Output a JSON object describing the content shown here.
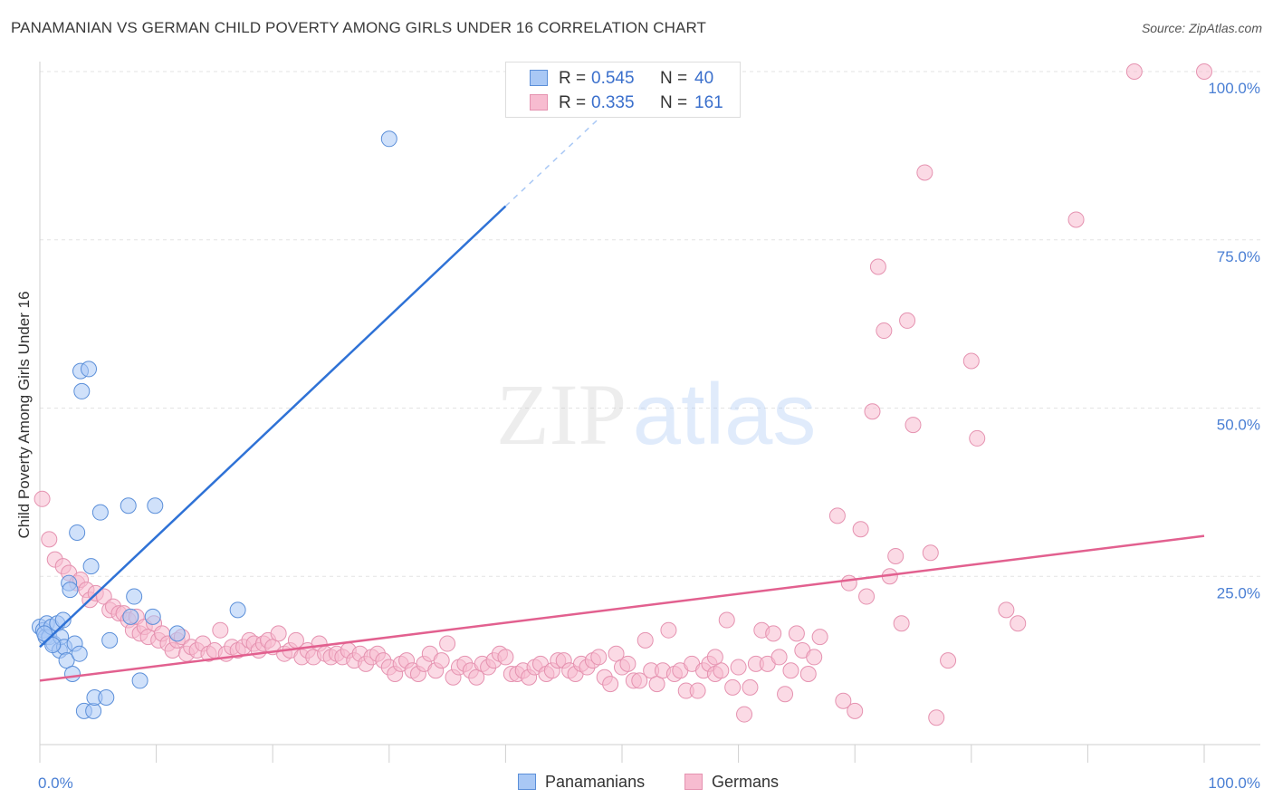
{
  "header": {
    "title": "PANAMANIAN VS GERMAN CHILD POVERTY AMONG GIRLS UNDER 16 CORRELATION CHART",
    "source": "Source: ZipAtlas.com"
  },
  "watermark": {
    "zip": "ZIP",
    "atlas": "atlas"
  },
  "legend": {
    "rows": [
      {
        "r_label": "R =",
        "r_value": "0.545",
        "n_label": "N =",
        "n_value": "40"
      },
      {
        "r_label": "R =",
        "r_value": "0.335",
        "n_label": "N =",
        "n_value": "161"
      }
    ]
  },
  "bottom_legend": {
    "series1": "Panamanians",
    "series2": "Germans"
  },
  "chart_data": {
    "type": "scatter",
    "title": "PANAMANIAN VS GERMAN CHILD POVERTY AMONG GIRLS UNDER 16 CORRELATION CHART",
    "ylabel": "Child Poverty Among Girls Under 16",
    "xlabel": "",
    "xlim": [
      0,
      100
    ],
    "ylim": [
      0,
      100
    ],
    "x_tick_labels": [
      "0.0%",
      "100.0%"
    ],
    "y_tick_labels": [
      "25.0%",
      "50.0%",
      "75.0%",
      "100.0%"
    ],
    "y_ticks": [
      25,
      50,
      75,
      100
    ],
    "grid": true,
    "legend_position": "top-center",
    "colors": {
      "panamanians_fill": "#a9c8f5",
      "panamanians_stroke": "#5b8fd9",
      "panamanians_line": "#2f72d6",
      "germans_fill": "#f7bcd0",
      "germans_stroke": "#e592b0",
      "germans_line": "#e2608f",
      "tick_text": "#4a7fd4",
      "grid": "#e3e3e3"
    },
    "series": [
      {
        "name": "Panamanians",
        "r": 0.545,
        "n": 40,
        "trend": {
          "x0": 0,
          "y0": 14.5,
          "x1": 40,
          "y1": 80,
          "dash_to_x": 48,
          "dash_to_y": 93
        },
        "points": [
          [
            0,
            17.5
          ],
          [
            0.3,
            17
          ],
          [
            0.5,
            16
          ],
          [
            0.6,
            18
          ],
          [
            0.8,
            16
          ],
          [
            1,
            17.5
          ],
          [
            1.2,
            15
          ],
          [
            1.5,
            18
          ],
          [
            1.7,
            14
          ],
          [
            1.8,
            16
          ],
          [
            2,
            18.5
          ],
          [
            2.1,
            14.5
          ],
          [
            2.3,
            12.5
          ],
          [
            2.5,
            24
          ],
          [
            2.6,
            23
          ],
          [
            2.8,
            10.5
          ],
          [
            3,
            15
          ],
          [
            3.2,
            31.5
          ],
          [
            3.4,
            13.5
          ],
          [
            3.5,
            55.5
          ],
          [
            3.6,
            52.5
          ],
          [
            3.8,
            5
          ],
          [
            4.2,
            55.8
          ],
          [
            4.4,
            26.5
          ],
          [
            4.6,
            5
          ],
          [
            4.7,
            7
          ],
          [
            5.2,
            34.5
          ],
          [
            5.7,
            7
          ],
          [
            6,
            15.5
          ],
          [
            7.6,
            35.5
          ],
          [
            7.8,
            19
          ],
          [
            8.1,
            22
          ],
          [
            8.6,
            9.5
          ],
          [
            9.7,
            19
          ],
          [
            9.9,
            35.5
          ],
          [
            11.8,
            16.5
          ],
          [
            17,
            20
          ],
          [
            30,
            90
          ],
          [
            0.4,
            16.5
          ],
          [
            1.1,
            14.8
          ]
        ]
      },
      {
        "name": "Germans",
        "r": 0.335,
        "n": 161,
        "trend": {
          "x0": 0,
          "y0": 9.5,
          "x1": 100,
          "y1": 31
        },
        "points": [
          [
            0.2,
            36.5
          ],
          [
            0.8,
            30.5
          ],
          [
            1.3,
            27.5
          ],
          [
            2,
            26.5
          ],
          [
            2.5,
            25.5
          ],
          [
            3.2,
            24
          ],
          [
            3.5,
            24.5
          ],
          [
            4,
            23
          ],
          [
            4.3,
            21.5
          ],
          [
            4.8,
            22.5
          ],
          [
            5.5,
            22
          ],
          [
            6,
            20
          ],
          [
            6.3,
            20.5
          ],
          [
            6.8,
            19.5
          ],
          [
            7.2,
            19.5
          ],
          [
            7.6,
            18.5
          ],
          [
            8,
            17
          ],
          [
            8.3,
            19
          ],
          [
            8.6,
            16.5
          ],
          [
            9,
            17.5
          ],
          [
            9.3,
            16
          ],
          [
            9.8,
            18
          ],
          [
            10.2,
            15.5
          ],
          [
            10.5,
            16.5
          ],
          [
            11,
            15
          ],
          [
            11.4,
            14
          ],
          [
            11.8,
            15.5
          ],
          [
            12.2,
            16
          ],
          [
            12.6,
            13.5
          ],
          [
            13,
            14.5
          ],
          [
            13.5,
            14
          ],
          [
            14,
            15
          ],
          [
            14.5,
            13.5
          ],
          [
            15,
            14
          ],
          [
            15.5,
            17
          ],
          [
            16,
            13.5
          ],
          [
            16.5,
            14.5
          ],
          [
            17,
            14
          ],
          [
            17.5,
            14.5
          ],
          [
            18,
            15.5
          ],
          [
            18.4,
            15
          ],
          [
            18.8,
            14
          ],
          [
            19.2,
            15
          ],
          [
            19.6,
            15.5
          ],
          [
            20,
            14.5
          ],
          [
            20.5,
            16.5
          ],
          [
            21,
            13.5
          ],
          [
            21.5,
            14
          ],
          [
            22,
            15.5
          ],
          [
            22.5,
            13
          ],
          [
            23,
            14
          ],
          [
            23.5,
            13
          ],
          [
            24,
            15
          ],
          [
            24.5,
            13.5
          ],
          [
            25,
            13
          ],
          [
            25.5,
            13.5
          ],
          [
            26,
            13
          ],
          [
            26.5,
            14
          ],
          [
            27,
            12.5
          ],
          [
            27.5,
            13.5
          ],
          [
            28,
            12
          ],
          [
            28.5,
            13
          ],
          [
            29,
            13.5
          ],
          [
            29.5,
            12.5
          ],
          [
            30,
            11.5
          ],
          [
            30.5,
            10.5
          ],
          [
            31,
            12
          ],
          [
            31.5,
            12.5
          ],
          [
            32,
            11
          ],
          [
            32.5,
            10.5
          ],
          [
            33,
            12
          ],
          [
            33.5,
            13.5
          ],
          [
            34,
            11
          ],
          [
            34.5,
            12.5
          ],
          [
            35,
            15
          ],
          [
            35.5,
            10
          ],
          [
            36,
            11.5
          ],
          [
            36.5,
            12
          ],
          [
            37,
            11
          ],
          [
            37.5,
            10
          ],
          [
            38,
            12
          ],
          [
            38.5,
            11.5
          ],
          [
            39,
            12.5
          ],
          [
            39.5,
            13.5
          ],
          [
            40,
            13
          ],
          [
            40.5,
            10.5
          ],
          [
            41,
            10.5
          ],
          [
            41.5,
            11
          ],
          [
            42,
            10
          ],
          [
            42.5,
            11.5
          ],
          [
            43,
            12
          ],
          [
            43.5,
            10.5
          ],
          [
            44,
            11
          ],
          [
            44.5,
            12.5
          ],
          [
            45,
            12.5
          ],
          [
            45.5,
            11
          ],
          [
            46,
            10.5
          ],
          [
            46.5,
            12
          ],
          [
            47,
            11.5
          ],
          [
            47.5,
            12.5
          ],
          [
            48,
            13
          ],
          [
            48.5,
            10
          ],
          [
            49,
            9
          ],
          [
            49.5,
            13.5
          ],
          [
            50,
            11.5
          ],
          [
            50.5,
            12
          ],
          [
            51,
            9.5
          ],
          [
            51.5,
            9.5
          ],
          [
            52,
            15.5
          ],
          [
            52.5,
            11
          ],
          [
            53,
            9
          ],
          [
            53.5,
            11
          ],
          [
            54,
            17
          ],
          [
            54.5,
            10.5
          ],
          [
            55,
            11
          ],
          [
            55.5,
            8
          ],
          [
            56,
            12
          ],
          [
            56.5,
            8
          ],
          [
            57,
            11
          ],
          [
            57.5,
            12
          ],
          [
            58,
            10.5
          ],
          [
            58.5,
            11
          ],
          [
            59,
            18.5
          ],
          [
            59.5,
            8.5
          ],
          [
            60,
            11.5
          ],
          [
            60.5,
            4.5
          ],
          [
            61,
            8.5
          ],
          [
            61.5,
            12
          ],
          [
            62,
            17
          ],
          [
            62.5,
            12
          ],
          [
            63,
            16.5
          ],
          [
            63.5,
            13
          ],
          [
            64,
            7.5
          ],
          [
            64.5,
            11
          ],
          [
            65,
            16.5
          ],
          [
            65.5,
            14
          ],
          [
            66,
            10.5
          ],
          [
            66.5,
            13
          ],
          [
            67,
            16
          ],
          [
            68.5,
            34
          ],
          [
            69,
            6.5
          ],
          [
            69.5,
            24
          ],
          [
            70,
            5
          ],
          [
            70.5,
            32
          ],
          [
            71,
            22
          ],
          [
            71.5,
            49.5
          ],
          [
            72,
            71
          ],
          [
            72.5,
            61.5
          ],
          [
            73,
            25
          ],
          [
            73.5,
            28
          ],
          [
            74,
            18
          ],
          [
            74.5,
            63
          ],
          [
            75,
            47.5
          ],
          [
            76,
            85
          ],
          [
            77,
            4
          ],
          [
            78,
            12.5
          ],
          [
            80,
            57
          ],
          [
            80.5,
            45.5
          ],
          [
            83,
            20
          ],
          [
            84,
            18
          ],
          [
            89,
            78
          ],
          [
            94,
            100
          ],
          [
            100,
            100
          ],
          [
            76.5,
            28.5
          ],
          [
            58,
            13
          ]
        ]
      }
    ]
  }
}
